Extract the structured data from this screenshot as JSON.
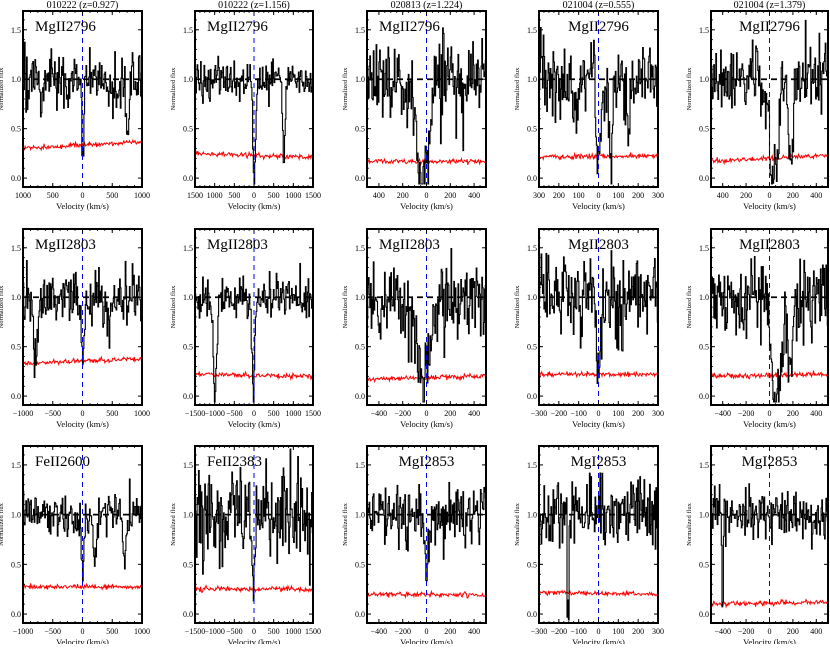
{
  "chart_data": {
    "type": "line",
    "grid": false,
    "xlabel": "Velocity (km/s)",
    "ylabel": "Normalized flux",
    "ylim": [
      -0.09,
      1.69
    ],
    "yticks": [
      "0.0",
      "0.5",
      "1.0",
      "1.5"
    ],
    "continuum": 1.0,
    "colors": {
      "flux": "#000000",
      "error": "#ff0000",
      "zero_velocity": "#0000ff",
      "continuum": "#000000"
    },
    "columns": [
      {
        "title": "010222 (z=0.927)",
        "grb": "010222",
        "z": "z=0.927"
      },
      {
        "title": "010222 (z=1.156)",
        "grb": "010222",
        "z": "z=1.156"
      },
      {
        "title": "020813 (z=1.224)",
        "grb": "020813",
        "z": "z=1.224"
      },
      {
        "title": "021004 (z=0.555)",
        "grb": "021004",
        "z": "z=0.555"
      },
      {
        "title": "021004 (z=1.379)",
        "grb": "021004",
        "z": "z=1.379"
      }
    ],
    "panels": [
      {
        "row": 0,
        "col": 0,
        "ion": "MgII2796",
        "label_align": "left",
        "xlim": [
          -1000,
          1000
        ],
        "xticks": [
          -1000,
          -500,
          0,
          500,
          1000
        ],
        "xtick_labels": [
          "1000",
          "500",
          "0",
          "500",
          "1000"
        ],
        "noise": 0.14,
        "error": [
          0.3,
          0.37
        ],
        "seed": 11,
        "features": [
          {
            "v": 0,
            "depth": 0.7,
            "width": 25
          },
          {
            "v": -700,
            "depth": 0.3,
            "width": 30
          },
          {
            "v": 750,
            "depth": 0.55,
            "width": 35
          },
          {
            "v": -250,
            "depth": 0.3,
            "width": 30
          }
        ]
      },
      {
        "row": 0,
        "col": 1,
        "ion": "MgII2796",
        "label_align": "left",
        "xlim": [
          -1500,
          1500
        ],
        "xticks": [
          -1500,
          -1000,
          -500,
          0,
          500,
          1000,
          1500
        ],
        "xtick_labels": [
          "1500",
          "1000",
          "500",
          "0",
          "500",
          "1000",
          "1500"
        ],
        "noise": 0.1,
        "error": [
          0.25,
          0.21
        ],
        "seed": 23,
        "features": [
          {
            "v": 0,
            "depth": 1.05,
            "width": 45
          },
          {
            "v": 750,
            "depth": 0.85,
            "width": 50
          }
        ]
      },
      {
        "row": 0,
        "col": 2,
        "ion": "MgII2796",
        "label_align": "left",
        "xlim": [
          -500,
          500
        ],
        "xticks": [
          -400,
          -200,
          0,
          200,
          400
        ],
        "xtick_labels": [
          "400",
          "200",
          "0",
          "200",
          "400"
        ],
        "noise": 0.2,
        "error": [
          0.17,
          0.17
        ],
        "seed": 37,
        "features": [
          {
            "v": -40,
            "depth": 1.1,
            "width": 70
          },
          {
            "v": -200,
            "depth": 0.3,
            "width": 20
          }
        ]
      },
      {
        "row": 0,
        "col": 3,
        "ion": "MgII2796",
        "label_align": "center",
        "xlim": [
          -300,
          300
        ],
        "xticks": [
          -300,
          -200,
          -100,
          0,
          100,
          200,
          300
        ],
        "xtick_labels": [
          "300",
          "200",
          "100",
          "0",
          "100",
          "200",
          "300"
        ],
        "noise": 0.2,
        "error": [
          0.22,
          0.22
        ],
        "seed": 41,
        "features": [
          {
            "v": 0,
            "depth": 0.85,
            "width": 15
          },
          {
            "v": 60,
            "depth": 0.9,
            "width": 12
          },
          {
            "v": -120,
            "depth": 0.5,
            "width": 12
          },
          {
            "v": 150,
            "depth": 0.5,
            "width": 10
          }
        ]
      },
      {
        "row": 0,
        "col": 4,
        "ion": "MgII2796",
        "label_align": "center",
        "xlim": [
          -500,
          500
        ],
        "xticks": [
          -400,
          -200,
          0,
          200,
          400
        ],
        "xtick_labels": [
          "400",
          "200",
          "0",
          "200",
          "400"
        ],
        "noise": 0.18,
        "error": [
          0.17,
          0.23
        ],
        "seed": 53,
        "features": [
          {
            "v": 30,
            "depth": 1.0,
            "width": 50
          },
          {
            "v": 180,
            "depth": 0.9,
            "width": 25
          }
        ]
      },
      {
        "row": 1,
        "col": 0,
        "ion": "MgII2803",
        "label_align": "left",
        "xlim": [
          -1000,
          1000
        ],
        "xticks": [
          -1000,
          -500,
          0,
          500,
          1000
        ],
        "xtick_labels": [
          "−1000",
          "−500",
          "0",
          "500",
          "1000"
        ],
        "noise": 0.14,
        "error": [
          0.33,
          0.38
        ],
        "seed": 61,
        "features": [
          {
            "v": -800,
            "depth": 0.7,
            "width": 40
          },
          {
            "v": 0,
            "depth": 0.75,
            "width": 30
          },
          {
            "v": 450,
            "depth": 0.4,
            "width": 30
          }
        ]
      },
      {
        "row": 1,
        "col": 1,
        "ion": "MgII2803",
        "label_align": "left",
        "xlim": [
          -1500,
          1500
        ],
        "xticks": [
          -1500,
          -1000,
          -500,
          0,
          500,
          1000,
          1500
        ],
        "xtick_labels": [
          "−1500",
          "−1000",
          "−500",
          "0",
          "500",
          "1000",
          "1500"
        ],
        "noise": 0.1,
        "error": [
          0.22,
          0.2
        ],
        "seed": 71,
        "features": [
          {
            "v": -1000,
            "depth": 1.05,
            "width": 55
          },
          {
            "v": -20,
            "depth": 1.05,
            "width": 45
          }
        ]
      },
      {
        "row": 1,
        "col": 2,
        "ion": "MgII2803",
        "label_align": "left",
        "xlim": [
          -500,
          500
        ],
        "xticks": [
          -400,
          -200,
          0,
          200,
          400
        ],
        "xtick_labels": [
          "−400",
          "−200",
          "0",
          "200",
          "400"
        ],
        "noise": 0.2,
        "error": [
          0.17,
          0.2
        ],
        "seed": 83,
        "features": [
          {
            "v": -30,
            "depth": 0.9,
            "width": 70
          },
          {
            "v": -400,
            "depth": 0.5,
            "width": 12
          }
        ]
      },
      {
        "row": 1,
        "col": 3,
        "ion": "MgII2803",
        "label_align": "center",
        "xlim": [
          -300,
          300
        ],
        "xticks": [
          -300,
          -200,
          -100,
          0,
          100,
          200,
          300
        ],
        "xtick_labels": [
          "−300",
          "−200",
          "−100",
          "0",
          "100",
          "200",
          "300"
        ],
        "noise": 0.2,
        "error": [
          0.22,
          0.22
        ],
        "seed": 97,
        "features": [
          {
            "v": 0,
            "depth": 0.8,
            "width": 12
          }
        ]
      },
      {
        "row": 1,
        "col": 4,
        "ion": "MgII2803",
        "label_align": "center",
        "xlim": [
          -500,
          500
        ],
        "xticks": [
          -400,
          -200,
          0,
          200,
          400
        ],
        "xtick_labels": [
          "−400",
          "−200",
          "0",
          "200",
          "400"
        ],
        "noise": 0.2,
        "error": [
          0.2,
          0.22
        ],
        "seed": 101,
        "features": [
          {
            "v": 50,
            "depth": 1.05,
            "width": 55
          },
          {
            "v": 180,
            "depth": 0.8,
            "width": 25
          }
        ]
      },
      {
        "row": 2,
        "col": 0,
        "ion": "FeII2600",
        "label_align": "left",
        "xlim": [
          -1000,
          1000
        ],
        "xticks": [
          -1000,
          -500,
          0,
          500,
          1000
        ],
        "xtick_labels": [
          "−1000",
          "−500",
          "0",
          "500",
          "1000"
        ],
        "noise": 0.1,
        "error": [
          0.28,
          0.27
        ],
        "seed": 113,
        "features": [
          {
            "v": 0,
            "depth": 0.5,
            "width": 30
          },
          {
            "v": 200,
            "depth": 0.5,
            "width": 30
          },
          {
            "v": 700,
            "depth": 0.5,
            "width": 30
          }
        ]
      },
      {
        "row": 2,
        "col": 1,
        "ion": "FeII2383",
        "label_align": "left",
        "xlim": [
          -1500,
          1500
        ],
        "xticks": [
          -1500,
          -1000,
          -500,
          0,
          500,
          1000,
          1500
        ],
        "xtick_labels": [
          "−1500",
          "−1000",
          "−500",
          "0",
          "500",
          "1000",
          "1500"
        ],
        "noise": 0.25,
        "error": [
          0.25,
          0.25
        ],
        "seed": 127,
        "features": [
          {
            "v": -30,
            "depth": 0.65,
            "width": 50
          },
          {
            "v": -1300,
            "depth": 0.4,
            "width": 20
          }
        ]
      },
      {
        "row": 2,
        "col": 2,
        "ion": "MgI2853",
        "label_align": "center",
        "xlim": [
          -500,
          500
        ],
        "xticks": [
          -400,
          -200,
          0,
          200,
          400
        ],
        "xtick_labels": [
          "−400",
          "−200",
          "0",
          "200",
          "400"
        ],
        "noise": 0.15,
        "error": [
          0.2,
          0.19
        ],
        "seed": 131,
        "features": [
          {
            "v": 0,
            "depth": 0.5,
            "width": 25
          }
        ]
      },
      {
        "row": 2,
        "col": 3,
        "ion": "MgI2853",
        "label_align": "center",
        "xlim": [
          -300,
          300
        ],
        "xticks": [
          -300,
          -200,
          -100,
          0,
          100,
          200,
          300
        ],
        "xtick_labels": [
          "−300",
          "−200",
          "−100",
          "0",
          "100",
          "200",
          "300"
        ],
        "noise": 0.2,
        "error": [
          0.22,
          0.2
        ],
        "seed": 139,
        "features": [
          {
            "v": -155,
            "depth": 1.0,
            "width": 6
          }
        ]
      },
      {
        "row": 2,
        "col": 4,
        "ion": "MgI2853",
        "label_align": "center",
        "xlim": [
          -500,
          500
        ],
        "xticks": [
          -400,
          -200,
          0,
          200,
          400
        ],
        "xtick_labels": [
          "−400",
          "−200",
          "0",
          "200",
          "400"
        ],
        "noise": 0.12,
        "error": [
          0.1,
          0.12
        ],
        "seed": 149,
        "features": [
          {
            "v": -405,
            "depth": 1.0,
            "width": 8
          }
        ]
      }
    ]
  }
}
